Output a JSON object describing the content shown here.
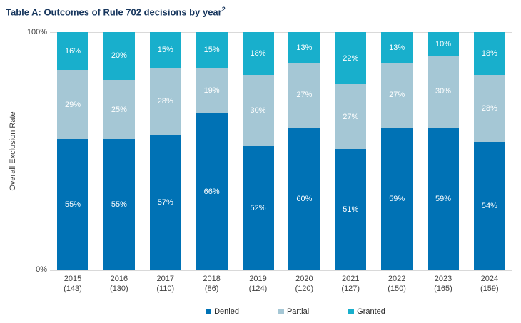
{
  "header": {
    "title": "Table A: Outcomes of Rule 702 decisions by year",
    "superscript": "2"
  },
  "chart_data": {
    "type": "bar",
    "subtype": "stacked-100-percent-column",
    "title": "Table A: Outcomes of Rule 702 decisions by year",
    "title_superscript": "2",
    "xlabel": "",
    "ylabel": "Overall Exclusion Rate",
    "ylim": [
      0,
      100
    ],
    "yticks": [
      {
        "label": "100%",
        "value": 100
      },
      {
        "label": "0%",
        "value": 0
      }
    ],
    "grid": "horizontal lines at 0% and 100% only",
    "legend_position": "bottom",
    "value_suffix": "%",
    "categories": [
      "2015",
      "2016",
      "2017",
      "2018",
      "2019",
      "2020",
      "2021",
      "2022",
      "2023",
      "2024"
    ],
    "category_counts": [
      "(143)",
      "(130)",
      "(110)",
      "(86)",
      "(124)",
      "(120)",
      "(127)",
      "(150)",
      "(165)",
      "(159)"
    ],
    "series": [
      {
        "name": "Denied",
        "color": "#0072B5",
        "values": [
          55,
          55,
          57,
          66,
          52,
          60,
          51,
          59,
          59,
          54
        ]
      },
      {
        "name": "Partial",
        "color": "#A5C7D5",
        "values": [
          29,
          25,
          28,
          19,
          30,
          27,
          27,
          27,
          30,
          28
        ]
      },
      {
        "name": "Granted",
        "color": "#18AFCC",
        "values": [
          16,
          20,
          15,
          15,
          18,
          13,
          22,
          13,
          10,
          18
        ]
      }
    ]
  },
  "colors": {
    "title_text": "#17365D",
    "axis_text": "#404040",
    "gridline": "#D9D9D9",
    "bar_label_text": "#FFFFFF"
  }
}
